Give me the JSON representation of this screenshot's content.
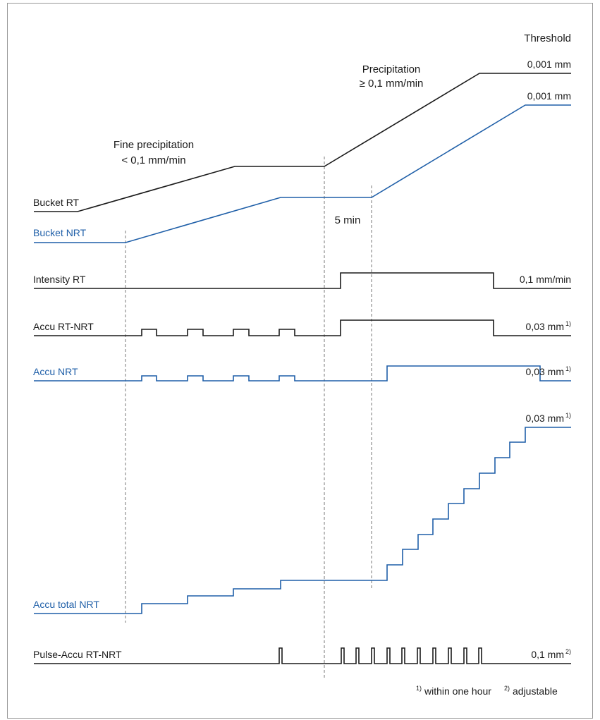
{
  "colors": {
    "rt": "#1a1a1a",
    "nrt": "#1f5fa8",
    "frame": "#999999",
    "guide": "#777777"
  },
  "header": {
    "threshold": "Threshold"
  },
  "annotations": {
    "fine_line1": "Fine precipitation",
    "fine_line2": "< 0,1 mm/min",
    "precip_line1": "Precipitation",
    "precip_line2": "≥ 0,1 mm/min",
    "five_min": "5 min"
  },
  "signals": [
    {
      "id": "bucket-rt",
      "label": "Bucket RT",
      "value": "0,001 mm",
      "sup": "",
      "color": "rt"
    },
    {
      "id": "bucket-nrt",
      "label": "Bucket NRT",
      "value": "0,001 mm",
      "sup": "",
      "color": "nrt"
    },
    {
      "id": "intensity-rt",
      "label": "Intensity RT",
      "value": "0,1 mm/min",
      "sup": "",
      "color": "rt"
    },
    {
      "id": "accu-rt-nrt",
      "label": "Accu RT-NRT",
      "value": "0,03 mm",
      "sup": "1)",
      "color": "rt"
    },
    {
      "id": "accu-nrt",
      "label": "Accu NRT",
      "value": "0,03 mm",
      "sup": "1)",
      "color": "nrt"
    },
    {
      "id": "accu-total-nrt",
      "label": "Accu total NRT",
      "value": "0,03 mm",
      "sup": "1)",
      "color": "nrt"
    },
    {
      "id": "pulse-accu",
      "label": "Pulse-Accu RT-NRT",
      "value": "0,1 mm",
      "sup": "2)",
      "color": "rt"
    }
  ],
  "footnote": {
    "sup1": "1)",
    "text1": "within one hour",
    "sup2": "2)",
    "text2": "adjustable"
  }
}
